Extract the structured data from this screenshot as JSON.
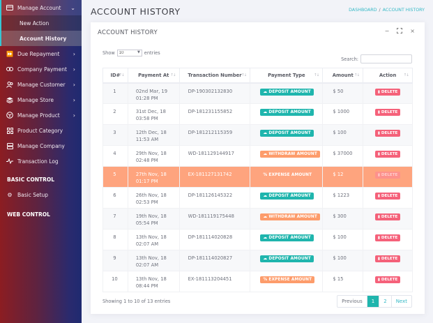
{
  "sidebar": {
    "items": [
      {
        "label": "Manage Account",
        "icon": "card-icon",
        "chevron": "⌄",
        "open": true,
        "children": [
          {
            "label": "New Action",
            "active": false
          },
          {
            "label": "Account History",
            "active": true
          }
        ]
      },
      {
        "label": "Due Repayment",
        "icon": "fast-forward-icon",
        "chevron": "›"
      },
      {
        "label": "Company Payment",
        "icon": "link-icon",
        "chevron": "›"
      },
      {
        "label": "Manage Customer",
        "icon": "users-icon",
        "chevron": "›"
      },
      {
        "label": "Manage Store",
        "icon": "store-icon",
        "chevron": "›"
      },
      {
        "label": "Manage Product",
        "icon": "box-icon",
        "chevron": "›"
      },
      {
        "label": "Product Category",
        "icon": "grid-icon"
      },
      {
        "label": "Manage Company",
        "icon": "server-icon"
      },
      {
        "label": "Transaction Log",
        "icon": "pulse-icon"
      }
    ],
    "headings": [
      "BASIC CONTROL",
      "WEB CONTROL"
    ],
    "basic_setup": {
      "label": "Basic Setup",
      "icon": "gears-icon"
    }
  },
  "header": {
    "title": "ACCOUNT HISTORY",
    "breadcrumb": [
      "DASHBOARD",
      "ACCOUNT HISTORY"
    ],
    "breadcrumb_sep": "/"
  },
  "card": {
    "title": "ACCOUNT HISTORY",
    "tools": {
      "minimize": "−",
      "expand": "⛶",
      "close": "×"
    },
    "length": {
      "prefix": "Show",
      "value": "10",
      "suffix": "entries"
    },
    "search": {
      "label": "Search:",
      "value": "",
      "placeholder": ""
    },
    "columns": [
      "ID#",
      "Payment At",
      "Transaction Number",
      "Payment Type",
      "Amount",
      "Action"
    ],
    "sort_icon": "↑↓",
    "rows": [
      {
        "id": "1",
        "date": "02nd Mar, 19",
        "time": "01:28 PM",
        "trx": "DP-190302132830",
        "type": "DEPOSIT AMOUNT",
        "kind": "deposit",
        "amount": "$ 50",
        "action": "DELETE"
      },
      {
        "id": "2",
        "date": "31st Dec, 18",
        "time": "03:58 PM",
        "trx": "DP-181231155852",
        "type": "DEPOSIT AMOUNT",
        "kind": "deposit",
        "amount": "$ 1000",
        "action": "DELETE"
      },
      {
        "id": "3",
        "date": "12th Dec, 18",
        "time": "11:53 AM",
        "trx": "DP-181212115359",
        "type": "DEPOSIT AMOUNT",
        "kind": "deposit",
        "amount": "$ 100",
        "action": "DELETE"
      },
      {
        "id": "4",
        "date": "29th Nov, 18",
        "time": "02:48 PM",
        "trx": "WD-181129144917",
        "type": "WITHDRAW AMOUNT",
        "kind": "withdraw",
        "amount": "$ 37000",
        "action": "DELETE"
      },
      {
        "id": "5",
        "date": "27th Nov, 18",
        "time": "01:17 PM",
        "trx": "EX-181127131742",
        "type": "EXPENSE AMOUNT",
        "kind": "expense",
        "amount": "$ 12",
        "action": "DELETE",
        "highlighted": true
      },
      {
        "id": "6",
        "date": "26th Nov, 18",
        "time": "02:53 PM",
        "trx": "DP-181126145322",
        "type": "DEPOSIT AMOUNT",
        "kind": "deposit",
        "amount": "$ 1223",
        "action": "DELETE"
      },
      {
        "id": "7",
        "date": "19th Nov, 18",
        "time": "05:54 PM",
        "trx": "WD-181119175448",
        "type": "WITHDRAW AMOUNT",
        "kind": "withdraw",
        "amount": "$ 300",
        "action": "DELETE"
      },
      {
        "id": "8",
        "date": "13th Nov, 18",
        "time": "02:07 AM",
        "trx": "DP-181114020828",
        "type": "DEPOSIT AMOUNT",
        "kind": "deposit",
        "amount": "$ 100",
        "action": "DELETE"
      },
      {
        "id": "9",
        "date": "13th Nov, 18",
        "time": "02:07 AM",
        "trx": "DP-181114020827",
        "type": "DEPOSIT AMOUNT",
        "kind": "deposit",
        "amount": "$ 100",
        "action": "DELETE"
      },
      {
        "id": "10",
        "date": "13th Nov, 18",
        "time": "08:44 PM",
        "trx": "EX-181113204451",
        "type": "EXPENSE AMOUNT",
        "kind": "expense",
        "amount": "$ 15",
        "action": "DELETE"
      }
    ],
    "info": "Showing 1 to 10 of 13 entries",
    "pagination": {
      "previous": "Previous",
      "pages": [
        "1",
        "2"
      ],
      "active": "1",
      "next": "Next"
    }
  },
  "colors": {
    "accent": "#1fb5ad",
    "highlight_row": "#fea47e",
    "danger": "#f4516c",
    "warning": "#fd9c6b",
    "breadcrumb": "#36b9c6"
  }
}
